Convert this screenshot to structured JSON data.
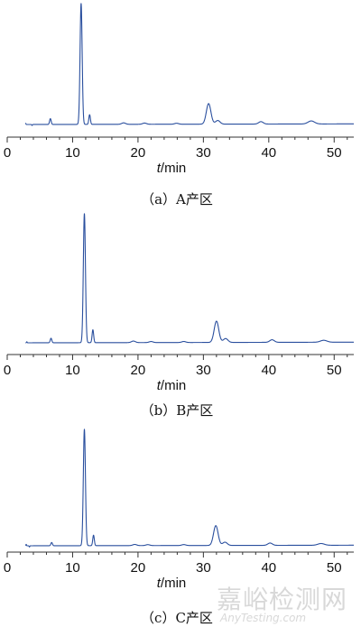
{
  "chart_data": [
    {
      "type": "line",
      "caption": "（a）A产区",
      "xlabel_var": "t",
      "xlabel_unit": "/min",
      "xlim": [
        0,
        53
      ],
      "xticks": [
        0,
        10,
        20,
        30,
        40,
        50
      ],
      "grid": false,
      "color": "#2a4f9e",
      "baseline_points": [
        [
          2.8,
          0
        ],
        [
          53,
          0.5
        ]
      ],
      "peaks": [
        {
          "x": 2.8,
          "height": 1.2,
          "width": 0.05
        },
        {
          "x": 3.8,
          "height": -0.8,
          "width": 0.05
        },
        {
          "x": 6.6,
          "height": 4.8,
          "width": 0.12
        },
        {
          "x": 11.3,
          "height": 100,
          "width": 0.16
        },
        {
          "x": 12.6,
          "height": 8,
          "width": 0.12
        },
        {
          "x": 17.8,
          "height": 1.2,
          "width": 0.3
        },
        {
          "x": 21.0,
          "height": 1.0,
          "width": 0.3
        },
        {
          "x": 25.9,
          "height": 0.8,
          "width": 0.3
        },
        {
          "x": 30.8,
          "height": 17,
          "width": 0.35
        },
        {
          "x": 32.2,
          "height": 3,
          "width": 0.35
        },
        {
          "x": 38.8,
          "height": 2,
          "width": 0.35
        },
        {
          "x": 46.5,
          "height": 2.5,
          "width": 0.5
        }
      ]
    },
    {
      "type": "line",
      "caption": "（b）B产区",
      "xlabel_var": "t",
      "xlabel_unit": "/min",
      "xlim": [
        0,
        53
      ],
      "xticks": [
        0,
        10,
        20,
        30,
        40,
        50
      ],
      "grid": false,
      "color": "#2a4f9e",
      "baseline_points": [
        [
          2.8,
          0
        ],
        [
          53,
          0.5
        ]
      ],
      "peaks": [
        {
          "x": 3.0,
          "height": 0.8,
          "width": 0.05
        },
        {
          "x": 6.7,
          "height": 3.5,
          "width": 0.12
        },
        {
          "x": 11.8,
          "height": 100,
          "width": 0.16
        },
        {
          "x": 13.1,
          "height": 10,
          "width": 0.12
        },
        {
          "x": 19.3,
          "height": 1.2,
          "width": 0.3
        },
        {
          "x": 22.0,
          "height": 0.8,
          "width": 0.3
        },
        {
          "x": 27.0,
          "height": 0.8,
          "width": 0.3
        },
        {
          "x": 32.0,
          "height": 16.5,
          "width": 0.35
        },
        {
          "x": 33.4,
          "height": 3,
          "width": 0.35
        },
        {
          "x": 40.5,
          "height": 2,
          "width": 0.35
        },
        {
          "x": 48.4,
          "height": 1.5,
          "width": 0.5
        }
      ]
    },
    {
      "type": "line",
      "caption": "（c）C产区",
      "xlabel_var": "t",
      "xlabel_unit": "/min",
      "xlim": [
        0,
        53
      ],
      "xticks": [
        0,
        10,
        20,
        30,
        40,
        50
      ],
      "grid": false,
      "color": "#2a4f9e",
      "baseline_points": [
        [
          2.8,
          0
        ],
        [
          53,
          0.5
        ]
      ],
      "peaks": [
        {
          "x": 2.9,
          "height": 1.2,
          "width": 0.05
        },
        {
          "x": 3.4,
          "height": -1.0,
          "width": 0.05
        },
        {
          "x": 6.8,
          "height": 2.8,
          "width": 0.12
        },
        {
          "x": 11.8,
          "height": 100,
          "width": 0.16
        },
        {
          "x": 13.2,
          "height": 9,
          "width": 0.12
        },
        {
          "x": 19.5,
          "height": 1.0,
          "width": 0.3
        },
        {
          "x": 21.5,
          "height": 0.8,
          "width": 0.3
        },
        {
          "x": 27.0,
          "height": 0.8,
          "width": 0.3
        },
        {
          "x": 31.9,
          "height": 17,
          "width": 0.35
        },
        {
          "x": 33.3,
          "height": 2.8,
          "width": 0.35
        },
        {
          "x": 40.2,
          "height": 2,
          "width": 0.35
        },
        {
          "x": 48.0,
          "height": 1.5,
          "width": 0.5
        }
      ]
    }
  ],
  "watermark": {
    "cn": "嘉峪检测网",
    "en": "AnyTesting.com"
  }
}
